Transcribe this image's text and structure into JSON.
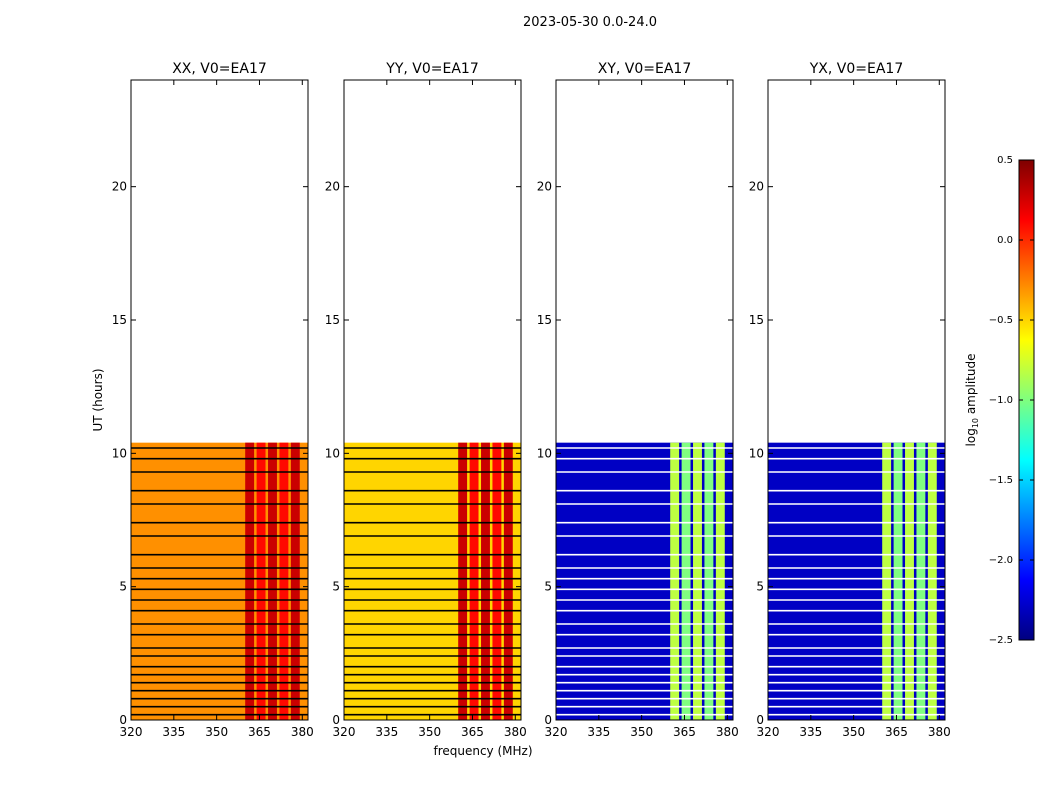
{
  "chart_data": {
    "type": "heatmap",
    "title": "2023-05-30 0.0-24.0",
    "xlabel": "frequency (MHz)",
    "ylabel": "UT (hours)",
    "xlim": [
      320,
      382
    ],
    "ylim": [
      0,
      24
    ],
    "x_ticks": [
      "320",
      "335",
      "350",
      "365",
      "380"
    ],
    "y_ticks": [
      "0",
      "5",
      "10",
      "15",
      "20"
    ],
    "data_time_range_hours": [
      0,
      10.4
    ],
    "panels": [
      {
        "title": "XX, V0=EA17",
        "product": "XX",
        "background_log_amplitude": -0.3,
        "rfi_band_log_amplitude": 0.2
      },
      {
        "title": "YY, V0=EA17",
        "product": "YY",
        "background_log_amplitude": -0.5,
        "rfi_band_log_amplitude": 0.2
      },
      {
        "title": "XY, V0=EA17",
        "product": "XY",
        "background_log_amplitude": -2.3,
        "rfi_band_log_amplitude": -0.9
      },
      {
        "title": "YX, V0=EA17",
        "product": "YX",
        "background_log_amplitude": -2.3,
        "rfi_band_log_amplitude": -0.9
      }
    ],
    "rfi_band_mhz": [
      360,
      380
    ],
    "flagged_times_hours": [
      0.2,
      0.5,
      0.8,
      1.1,
      1.4,
      1.7,
      2.0,
      2.4,
      2.7,
      3.2,
      3.6,
      4.1,
      4.5,
      4.9,
      5.3,
      5.7,
      6.2,
      6.9,
      7.4,
      8.1,
      8.6,
      9.3,
      9.8,
      10.2
    ],
    "colorbar": {
      "label": "log",
      "label_subscript": "10",
      "label_suffix": " amplitude",
      "range": [
        -2.5,
        0.5
      ],
      "ticks": [
        "0.5",
        "0.0",
        "−0.5",
        "−1.0",
        "−1.5",
        "−2.0",
        "−2.5"
      ],
      "colormap": "jet"
    }
  }
}
